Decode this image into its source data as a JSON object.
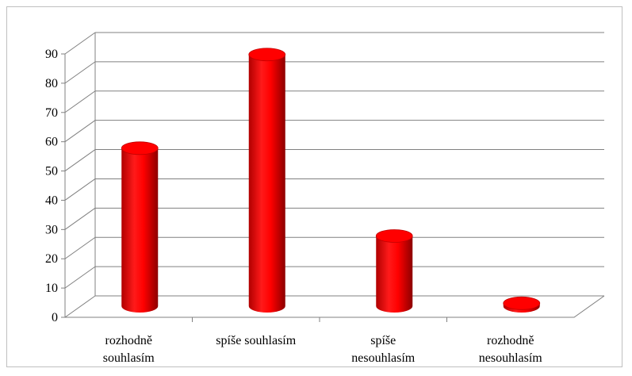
{
  "chart_data": {
    "type": "bar",
    "style": "3d-cylinder",
    "categories": [
      [
        "rozhodně",
        "souhlasím"
      ],
      [
        "spíše souhlasím"
      ],
      [
        "spíše",
        "nesouhlasím"
      ],
      [
        "rozhodně",
        "nesouhlasím"
      ]
    ],
    "values": [
      54,
      86,
      24,
      1
    ],
    "ylim": [
      0,
      90
    ],
    "yticks": [
      "0",
      "10",
      "20",
      "30",
      "40",
      "50",
      "60",
      "70",
      "80",
      "90"
    ],
    "grid": true,
    "legend": "none",
    "colors": {
      "bar": "#ff0000",
      "bar_dark": "#9a0000",
      "grid": "#808080"
    }
  }
}
